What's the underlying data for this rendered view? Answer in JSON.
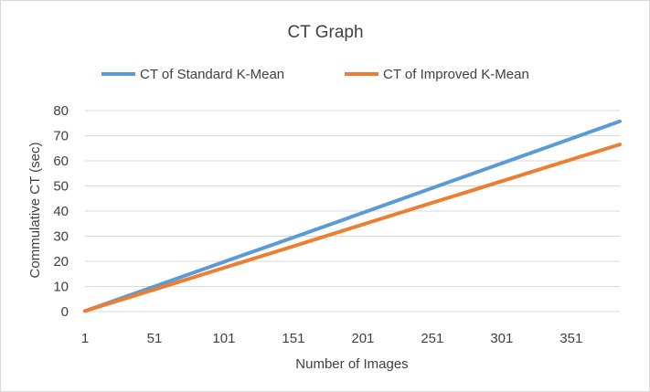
{
  "chart_data": {
    "type": "line",
    "title": "CT Graph",
    "xlabel": "Number  of Images",
    "ylabel": "Commulative CT (sec)",
    "x_range": [
      1,
      386
    ],
    "x_ticks": [
      "1",
      "51",
      "101",
      "151",
      "201",
      "251",
      "301",
      "351"
    ],
    "x_tick_values": [
      1,
      51,
      101,
      151,
      201,
      251,
      301,
      351
    ],
    "ylim": [
      0,
      80
    ],
    "y_ticks": [
      "0",
      "10",
      "20",
      "30",
      "40",
      "50",
      "60",
      "70",
      "80"
    ],
    "y_tick_values": [
      0,
      10,
      20,
      30,
      40,
      50,
      60,
      70,
      80
    ],
    "grid": "horizontal",
    "legend_position": "top",
    "series": [
      {
        "name": "CT of Standard K-Mean",
        "color": "#5b9bd5",
        "x": [
          1,
          51,
          101,
          151,
          201,
          251,
          301,
          351,
          386
        ],
        "values": [
          0.2,
          10.0,
          19.8,
          29.5,
          39.3,
          49.2,
          59.0,
          68.8,
          75.7
        ]
      },
      {
        "name": "CT of Improved K-Mean",
        "color": "#ed7d31",
        "x": [
          1,
          51,
          101,
          151,
          201,
          251,
          301,
          351,
          386
        ],
        "values": [
          0.2,
          8.8,
          17.4,
          26.0,
          34.7,
          43.3,
          51.9,
          60.5,
          66.5
        ]
      }
    ]
  }
}
